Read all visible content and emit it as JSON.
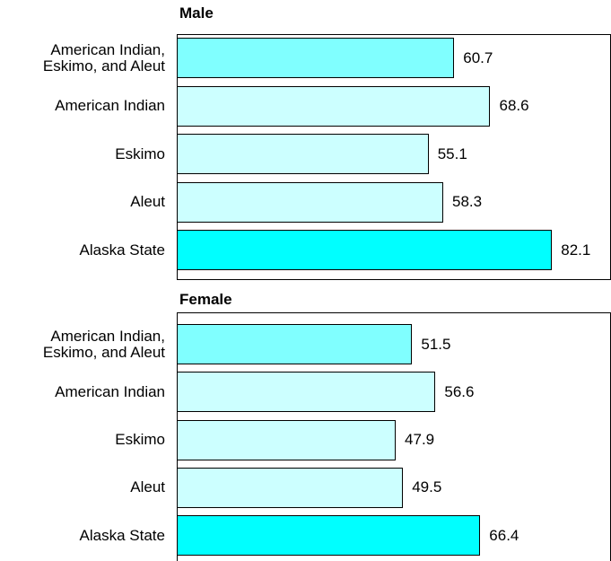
{
  "chart_data": [
    {
      "type": "bar",
      "orientation": "horizontal",
      "title": "Male",
      "categories": [
        "American Indian, Eskimo, and Aleut",
        "American Indian",
        "Eskimo",
        "Aleut",
        "Alaska State"
      ],
      "values": [
        60.7,
        68.6,
        55.1,
        58.3,
        82.1
      ],
      "colors": [
        "#80ffff",
        "#ccffff",
        "#ccffff",
        "#ccffff",
        "#00ffff"
      ],
      "xlim": [
        0,
        95
      ]
    },
    {
      "type": "bar",
      "orientation": "horizontal",
      "title": "Female",
      "categories": [
        "American Indian, Eskimo, and Aleut",
        "American Indian",
        "Eskimo",
        "Aleut",
        "Alaska State"
      ],
      "values": [
        51.5,
        56.6,
        47.9,
        49.5,
        66.4
      ],
      "colors": [
        "#80ffff",
        "#ccffff",
        "#ccffff",
        "#ccffff",
        "#00ffff"
      ],
      "xlim": [
        0,
        95
      ]
    }
  ]
}
